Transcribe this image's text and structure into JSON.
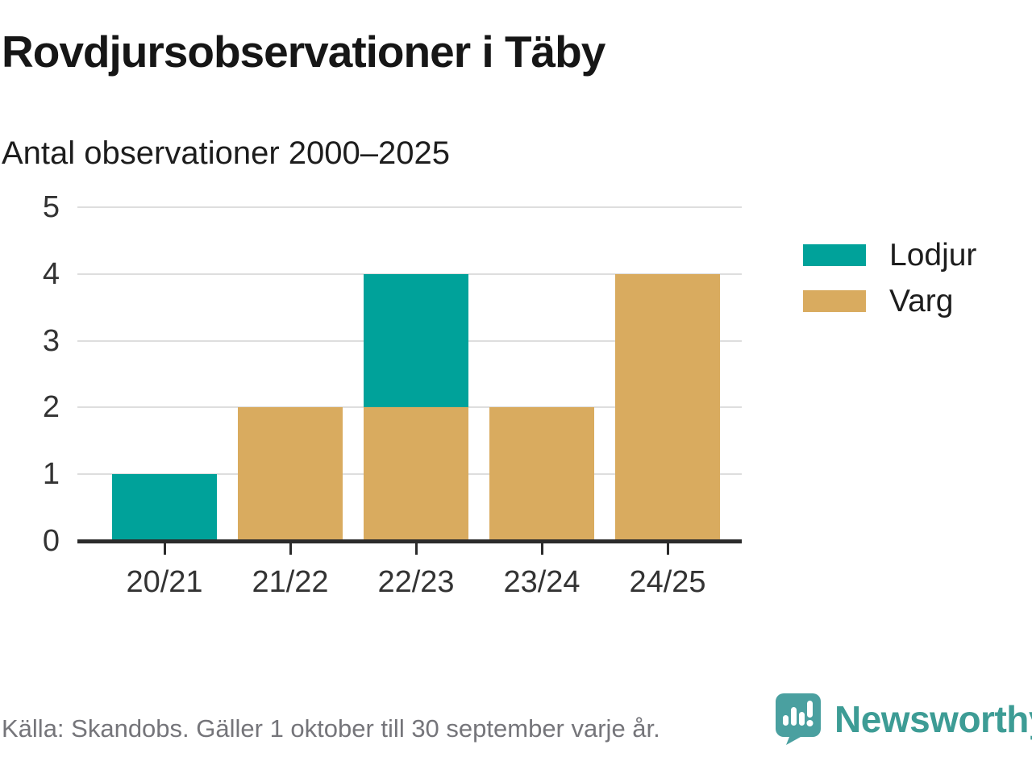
{
  "header": {
    "title": "Rovdjursobservationer i Täby",
    "subtitle": "Antal observationer 2000–2025"
  },
  "chart_data": {
    "type": "bar",
    "stacked": true,
    "title": "Rovdjursobservationer i Täby",
    "subtitle": "Antal observationer 2000–2025",
    "categories": [
      "20/21",
      "21/22",
      "22/23",
      "23/24",
      "24/25"
    ],
    "series": [
      {
        "name": "Lodjur",
        "color": "#00a29a",
        "values": [
          1,
          0,
          2,
          0,
          0
        ]
      },
      {
        "name": "Varg",
        "color": "#d9ab5f",
        "values": [
          0,
          2,
          2,
          2,
          4
        ]
      }
    ],
    "stack_bottom_to_top": [
      "Varg",
      "Lodjur"
    ],
    "totals": [
      1,
      2,
      4,
      2,
      4
    ],
    "xlabel": "",
    "ylabel": "",
    "ylim": [
      0,
      5
    ],
    "yticks": [
      0,
      1,
      2,
      3,
      4,
      5
    ],
    "grid": true,
    "legend_position": "right"
  },
  "footer": {
    "source": "Källa: Skandobs. Gäller 1 oktober till 30 september varje år.",
    "brand": "Newsworthy",
    "logo_icon": "speech-bubble-bar-chart-icon"
  },
  "colors": {
    "teal": "#00a29a",
    "gold": "#d9ab5f",
    "grid": "#dedede",
    "axis": "#2b2b2b",
    "tick_label": "#333333",
    "heading": "#161616",
    "muted": "#75757a",
    "brand_text": "#3d9c95",
    "brand_icon": "#4aa0a0"
  }
}
